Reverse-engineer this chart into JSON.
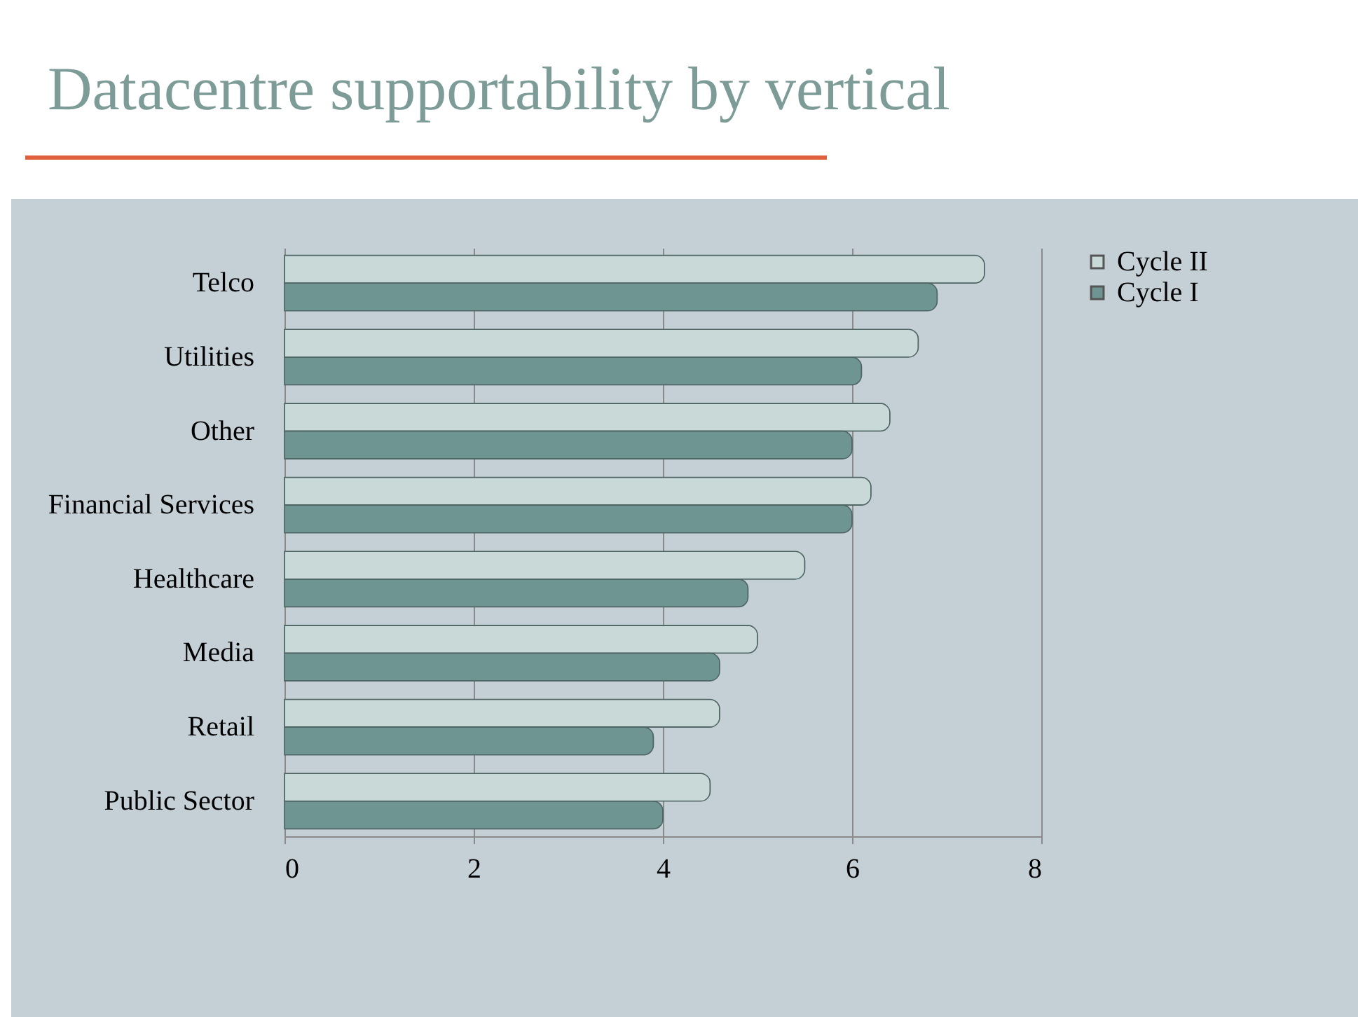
{
  "chart_data": {
    "type": "bar",
    "title": "Datacentre supportability by vertical",
    "orientation": "horizontal",
    "categories": [
      "Telco",
      "Utilities",
      "Other",
      "Financial Services",
      "Healthcare",
      "Media",
      "Retail",
      "Public Sector"
    ],
    "series": [
      {
        "name": "Cycle II",
        "color": "#c9d9d7",
        "values": [
          7.4,
          6.7,
          6.4,
          6.2,
          5.5,
          5.0,
          4.6,
          4.5
        ]
      },
      {
        "name": "Cycle I",
        "color": "#6f9593",
        "values": [
          6.9,
          6.1,
          6.0,
          6.0,
          4.9,
          4.6,
          3.9,
          4.0
        ]
      }
    ],
    "xlim": [
      0,
      8
    ],
    "xticks": [
      0,
      2,
      4,
      6,
      8
    ],
    "grid": "x",
    "legend": "right"
  }
}
